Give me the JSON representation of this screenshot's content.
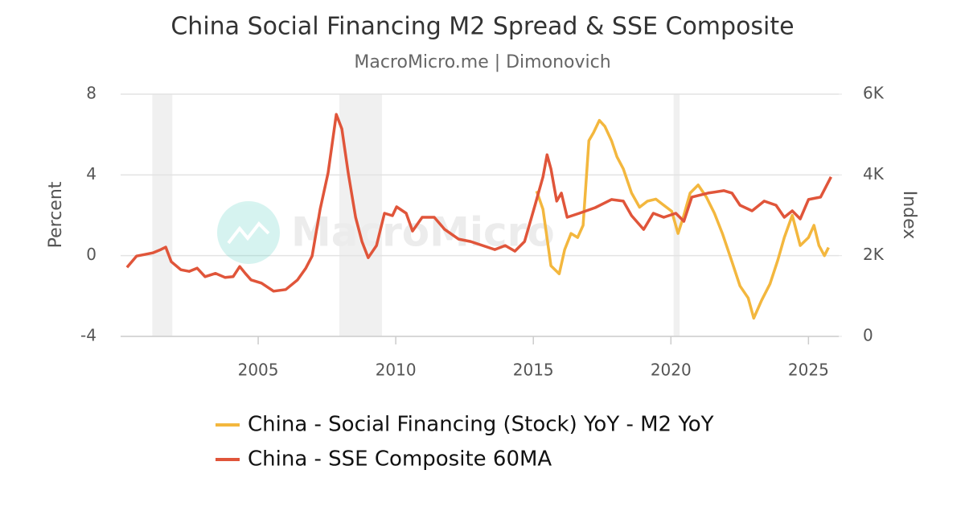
{
  "chart_data": {
    "type": "line",
    "title": "China Social Financing M2 Spread & SSE Composite",
    "subtitle": "MacroMicro.me | Dimonovich",
    "watermark": "MacroMicro",
    "y_label": "Percent",
    "y2_label": "Index",
    "xlim": [
      2000,
      2026.1
    ],
    "xticks": [
      2005,
      2010,
      2015,
      2020,
      2025
    ],
    "ylim": [
      -4,
      8
    ],
    "yticks": [
      -4,
      0,
      4,
      8
    ],
    "y2lim": [
      0,
      6000
    ],
    "y2ticks": [
      0,
      {
        "value": 2000,
        "label": "2K"
      },
      {
        "value": 4000,
        "label": "4K"
      },
      {
        "value": 6000,
        "label": "6K"
      }
    ],
    "grid": true,
    "shaded_periods": [
      [
        2001.15,
        2001.88
      ],
      [
        2007.95,
        2009.5
      ],
      [
        2020.1,
        2020.32
      ]
    ],
    "series": [
      {
        "name": "China - Social Financing (Stock) YoY - M2 YoY",
        "color": "#f3b73e",
        "axis": "y",
        "x": [
          2015.12,
          2015.35,
          2015.64,
          2015.94,
          2016.14,
          2016.37,
          2016.61,
          2016.81,
          2017.02,
          2017.19,
          2017.4,
          2017.6,
          2017.84,
          2018.04,
          2018.27,
          2018.57,
          2018.86,
          2019.15,
          2019.45,
          2019.74,
          2020.03,
          2020.26,
          2020.47,
          2020.7,
          2020.99,
          2021.29,
          2021.58,
          2021.87,
          2022.22,
          2022.51,
          2022.81,
          2023.01,
          2023.3,
          2023.6,
          2023.89,
          2024.12,
          2024.41,
          2024.7,
          2025.0,
          2025.2,
          2025.38,
          2025.58,
          2025.73
        ],
        "values": [
          3.2,
          2.3,
          -0.5,
          -0.9,
          0.3,
          1.1,
          0.9,
          1.5,
          5.7,
          6.1,
          6.7,
          6.4,
          5.7,
          4.9,
          4.3,
          3.1,
          2.4,
          2.7,
          2.8,
          2.5,
          2.2,
          1.1,
          2.0,
          3.1,
          3.5,
          2.9,
          2.1,
          1.1,
          -0.3,
          -1.5,
          -2.1,
          -3.1,
          -2.2,
          -1.4,
          -0.2,
          0.9,
          2.0,
          0.5,
          0.9,
          1.5,
          0.5,
          0.0,
          0.4
        ]
      },
      {
        "name": "China - SSE Composite 60MA",
        "color": "#e0553a",
        "axis": "y2",
        "x": [
          2000.23,
          2000.58,
          2000.88,
          2001.17,
          2001.46,
          2001.64,
          2001.84,
          2002.19,
          2002.49,
          2002.78,
          2003.07,
          2003.45,
          2003.8,
          2004.09,
          2004.33,
          2004.53,
          2004.74,
          2005.12,
          2005.56,
          2006.0,
          2006.43,
          2006.73,
          2006.96,
          2007.25,
          2007.54,
          2007.84,
          2008.04,
          2008.27,
          2008.54,
          2008.77,
          2009.0,
          2009.3,
          2009.59,
          2009.88,
          2010.03,
          2010.38,
          2010.61,
          2010.96,
          2011.4,
          2011.78,
          2012.28,
          2012.72,
          2013.16,
          2013.6,
          2013.98,
          2014.33,
          2014.68,
          2015.06,
          2015.35,
          2015.5,
          2015.64,
          2015.85,
          2016.02,
          2016.23,
          2016.67,
          2017.25,
          2017.84,
          2018.27,
          2018.57,
          2019.01,
          2019.36,
          2019.74,
          2020.18,
          2020.47,
          2020.76,
          2021.35,
          2021.93,
          2022.22,
          2022.51,
          2022.95,
          2023.39,
          2023.82,
          2024.12,
          2024.41,
          2024.7,
          2025.0,
          2025.44,
          2025.82
        ],
        "values": [
          1710,
          1990,
          2030,
          2070,
          2150,
          2210,
          1850,
          1650,
          1610,
          1690,
          1480,
          1560,
          1460,
          1480,
          1730,
          1560,
          1400,
          1320,
          1120,
          1160,
          1400,
          1690,
          1990,
          3150,
          4050,
          5500,
          5140,
          4050,
          2950,
          2350,
          1950,
          2250,
          3050,
          2990,
          3210,
          3050,
          2610,
          2950,
          2950,
          2650,
          2410,
          2350,
          2250,
          2150,
          2250,
          2110,
          2350,
          3250,
          3950,
          4500,
          4150,
          3350,
          3550,
          2950,
          3050,
          3190,
          3390,
          3350,
          2990,
          2650,
          3050,
          2950,
          3050,
          2850,
          3450,
          3550,
          3610,
          3550,
          3250,
          3110,
          3350,
          3250,
          2950,
          3110,
          2910,
          3390,
          3450,
          3950
        ]
      }
    ]
  }
}
